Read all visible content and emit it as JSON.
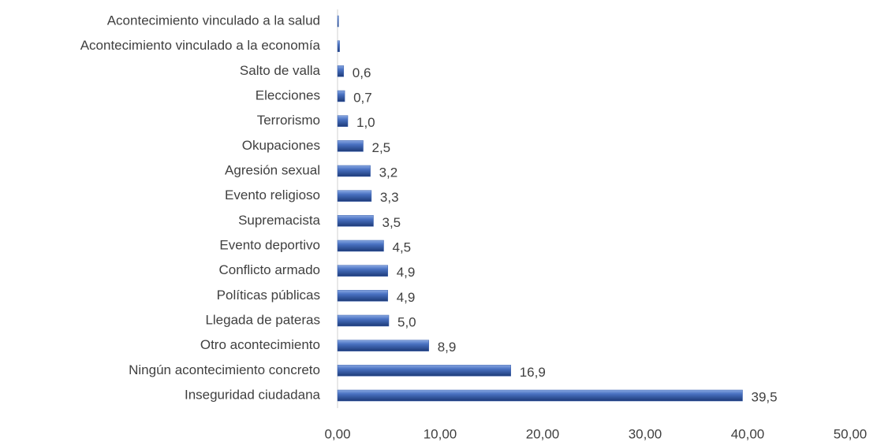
{
  "chart_data": {
    "type": "bar",
    "orientation": "horizontal",
    "categories": [
      "Acontecimiento vinculado a la salud",
      "Acontecimiento vinculado a la economía",
      "Salto de valla",
      "Elecciones",
      "Terrorismo",
      "Okupaciones",
      "Agresión sexual",
      "Evento religioso",
      "Supremacista",
      "Evento deportivo",
      "Conflicto armado",
      "Políticas públicas",
      "Llegada de pateras",
      "Otro acontecimiento",
      "Ningún acontecimiento concreto",
      "Inseguridad ciudadana"
    ],
    "values": [
      0.1,
      0.2,
      0.6,
      0.7,
      1.0,
      2.5,
      3.2,
      3.3,
      3.5,
      4.5,
      4.9,
      4.9,
      5.0,
      8.9,
      16.9,
      39.5
    ],
    "value_labels": [
      null,
      null,
      "0,6",
      "0,7",
      "1,0",
      "2,5",
      "3,2",
      "3,3",
      "3,5",
      "4,5",
      "4,9",
      "4,9",
      "5,0",
      "8,9",
      "16,9",
      "39,5"
    ],
    "color": "#3d63b0",
    "xlim": [
      0,
      50
    ],
    "xticks": [
      {
        "value": 0,
        "label": "0,00"
      },
      {
        "value": 10,
        "label": "10,00"
      },
      {
        "value": 20,
        "label": "20,00"
      },
      {
        "value": 30,
        "label": "30,00"
      },
      {
        "value": 40,
        "label": "40,00"
      },
      {
        "value": 50,
        "label": "50,00"
      }
    ],
    "grid": false
  }
}
